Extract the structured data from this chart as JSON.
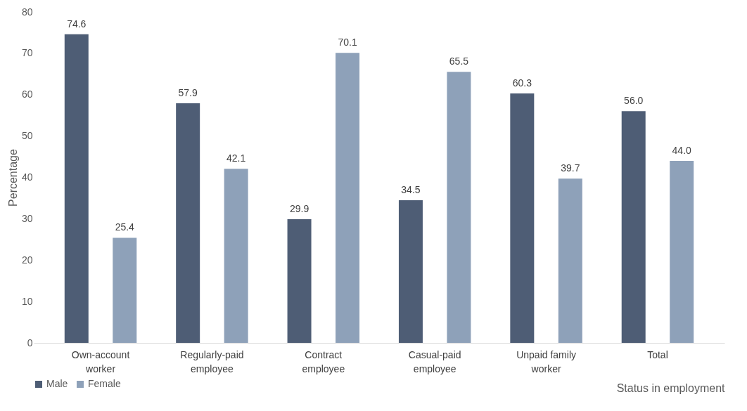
{
  "chart_data": {
    "type": "bar",
    "xlabel": "Status in employment",
    "ylabel": "Percentage",
    "categories": [
      "Own-account worker",
      "Regularly-paid employee",
      "Contract employee",
      "Casual-paid employee",
      "Unpaid family worker",
      "Total"
    ],
    "series": [
      {
        "name": "Male",
        "color": "#4e5d75",
        "values": [
          74.6,
          57.9,
          29.9,
          34.5,
          60.3,
          56.0
        ],
        "value_labels": [
          "74.6",
          "57.9",
          "29.9",
          "34.5",
          "60.3",
          "56.0"
        ]
      },
      {
        "name": "Female",
        "color": "#8ea1b9",
        "values": [
          25.4,
          42.1,
          70.1,
          65.5,
          39.7,
          44.0
        ],
        "value_labels": [
          "25.4",
          "42.1",
          "70.1",
          "65.5",
          "39.7",
          "44.0"
        ]
      }
    ],
    "ylim": [
      0,
      80
    ],
    "yticks": [
      0,
      10,
      20,
      30,
      40,
      50,
      60,
      70,
      80
    ],
    "legend": "bottom",
    "grid": false
  }
}
